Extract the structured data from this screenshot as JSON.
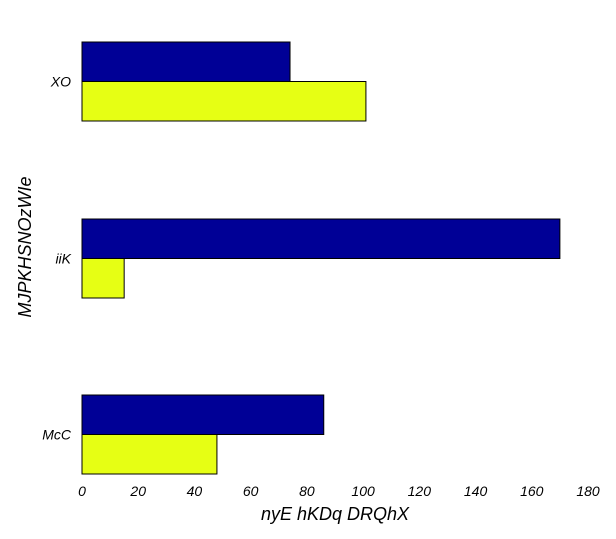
{
  "chart_data": {
    "type": "bar",
    "orientation": "horizontal",
    "categories": [
      "XO",
      "iiK",
      "McC"
    ],
    "series": [
      {
        "color": "#000096",
        "values": [
          74,
          170,
          86
        ]
      },
      {
        "color": "#e6ff14",
        "values": [
          101,
          15,
          48
        ]
      }
    ],
    "xlabel": "nyE hKDq DRQhX",
    "ylabel": "MJPKHSNOzWIe",
    "xlim": [
      0,
      180
    ],
    "xticks": [
      0,
      20,
      40,
      60,
      80,
      100,
      120,
      140,
      160,
      180
    ],
    "grid": false,
    "legend": "none"
  }
}
